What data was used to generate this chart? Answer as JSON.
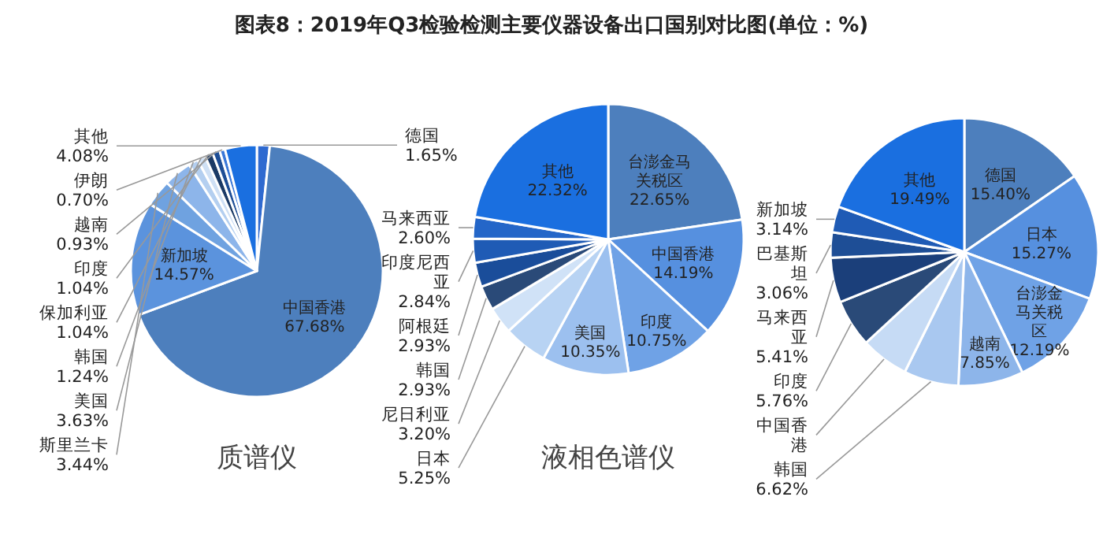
{
  "chart_data": [
    {
      "type": "pie",
      "title": "图表8：2019年Q3检验检测主要仪器设备出口国别对比图(单位：%)",
      "xlabel": "质谱仪",
      "categories": [
        "德国",
        "中国香港",
        "新加坡",
        "斯里兰卡",
        "美国",
        "韩国",
        "保加利亚",
        "印度",
        "越南",
        "伊朗",
        "其他"
      ],
      "values": [
        1.65,
        67.68,
        14.57,
        3.44,
        3.63,
        1.24,
        1.04,
        1.04,
        0.93,
        0.7,
        4.08
      ],
      "value_labels": [
        "1.65%",
        "67.68%",
        "14.57%",
        "3.44%",
        "3.63%",
        "1.24%",
        "1.04%",
        "1.04%",
        "0.93%",
        "0.70%",
        "4.08%"
      ],
      "colors": [
        "#2f6ad0",
        "#4d7fbd",
        "#5b93dd",
        "#6fa2e0",
        "#8db5ea",
        "#b4cff0",
        "#cfe0f5",
        "#1b3a66",
        "#1e4e96",
        "#3a78d8",
        "#1a6fe0"
      ]
    },
    {
      "type": "pie",
      "xlabel": "液相色谱仪",
      "categories": [
        "台澎金马关税区",
        "中国香港",
        "印度",
        "美国",
        "日本",
        "尼日利亚",
        "韩国",
        "阿根廷",
        "印度尼西亚",
        "马来西亚",
        "其他"
      ],
      "values": [
        22.65,
        14.19,
        10.75,
        10.35,
        5.25,
        3.2,
        2.93,
        2.93,
        2.84,
        2.6,
        22.32
      ],
      "value_labels": [
        "22.65%",
        "14.19%",
        "10.75%",
        "10.35%",
        "5.25%",
        "3.20%",
        "2.93%",
        "2.93%",
        "2.84%",
        "2.60%",
        "22.32%"
      ],
      "colors": [
        "#4d7fbd",
        "#5690df",
        "#6fa2e6",
        "#9cc0ef",
        "#b8d3f3",
        "#d0e2f7",
        "#2a4a78",
        "#1a4d9a",
        "#1f5bb5",
        "#2466c8",
        "#1a6fe0"
      ]
    },
    {
      "type": "pie",
      "categories": [
        "德国",
        "日本",
        "台澎金马关税区",
        "越南",
        "韩国",
        "中国香港",
        "印度",
        "马来西亚",
        "巴基斯坦",
        "新加坡",
        "其他"
      ],
      "values": [
        15.4,
        15.27,
        12.19,
        7.85,
        6.62,
        5.81,
        5.76,
        5.41,
        3.06,
        3.14,
        19.49
      ],
      "value_labels": [
        "15.40%",
        "15.27%",
        "12.19%",
        "7.85%",
        "6.62%",
        null,
        "5.76%",
        "5.41%",
        "3.06%",
        "3.14%",
        "19.49%"
      ],
      "colors": [
        "#4d7fbd",
        "#5690df",
        "#6fa2e6",
        "#8db5ea",
        "#a9c8f0",
        "#c6dbf5",
        "#2a4a78",
        "#1b3f7a",
        "#1e4e96",
        "#1f5bb5",
        "#1a6fe0"
      ]
    }
  ]
}
